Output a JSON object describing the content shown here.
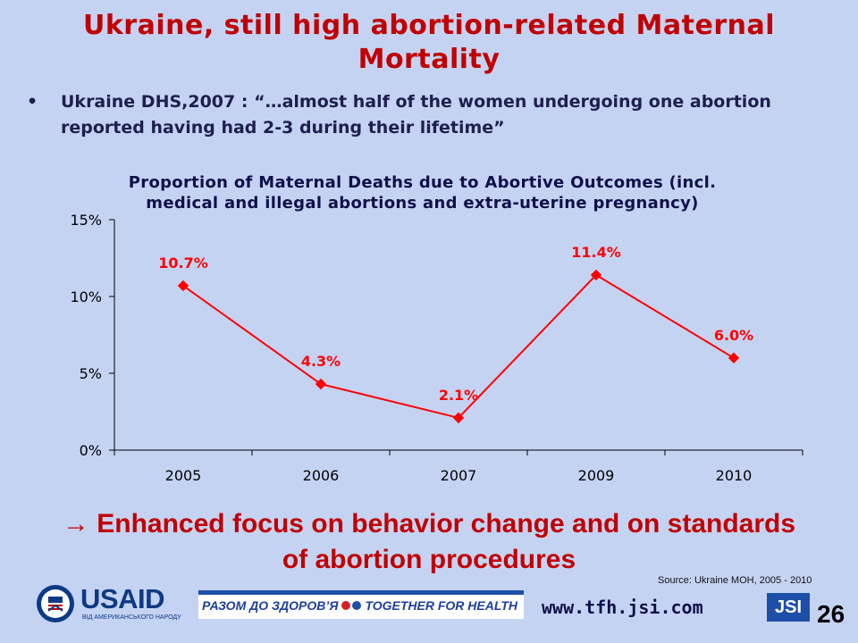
{
  "title": "Ukraine, still high abortion-related Maternal Mortality",
  "bullet": {
    "marker": "•",
    "text": "Ukraine DHS,2007 : “…almost half of the women undergoing one abortion reported having had 2-3 during their lifetime”"
  },
  "chart_data": {
    "type": "line",
    "title": "Proportion of Maternal Deaths due to Abortive Outcomes (incl. medical and illegal abortions and extra-uterine pregnancy)",
    "categories": [
      "2005",
      "2006",
      "2007",
      "2009",
      "2010"
    ],
    "series": [
      {
        "values": [
          10.7,
          4.3,
          2.1,
          11.4,
          6.0
        ],
        "data_labels": [
          "10.7%",
          "4.3%",
          "2.1%",
          "11.4%",
          "6.0%"
        ],
        "color": "#ff0000",
        "marker": "diamond"
      }
    ],
    "ylim": [
      0,
      15
    ],
    "yticks": [
      0,
      5,
      10,
      15
    ],
    "ytick_labels": [
      "0%",
      "5%",
      "10%",
      "15%"
    ],
    "grid": false,
    "legend": "none",
    "xlabel": "",
    "ylabel": ""
  },
  "conclusion": "→ Enhanced focus on behavior change and on standards of abortion procedures",
  "source": "Source: Ukraine MOH, 2005 - 2010",
  "footer": {
    "usaid_word": "USAID",
    "usaid_sub": "ВІД АМЕРИКАНСЬКОГО НАРОДУ",
    "banner_left": "РАЗОМ ДО ЗДОРОВ’Я",
    "banner_right": "TOGETHER FOR HEALTH",
    "website": "www.tfh.jsi.com",
    "jsi_logo": "JSI",
    "page_number": "26"
  },
  "colors": {
    "background": "#c5d3f3",
    "title": "#c00000",
    "series": "#ff0000",
    "text_dark": "#10104a",
    "brand_blue": "#1e4fa8"
  }
}
